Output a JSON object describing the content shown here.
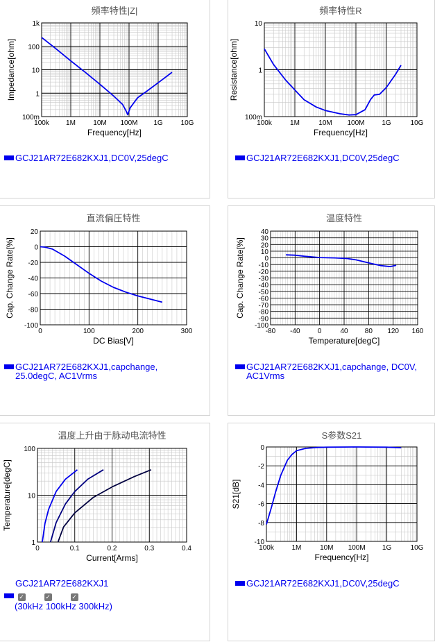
{
  "charts": [
    {
      "id": "impedance",
      "title": "頻率特性|Z|",
      "xlabel": "Frequency[Hz]",
      "ylabel": "Impedance[ohm]",
      "xscale": "log",
      "yscale": "log",
      "xticks": [
        "100k",
        "1M",
        "10M",
        "100M",
        "1G",
        "10G"
      ],
      "yticks": [
        "100m",
        "1",
        "10",
        "100",
        "1k"
      ],
      "legend": [
        "GCJ21AR72E682KXJ1,DC0V,25degC"
      ]
    },
    {
      "id": "resistance",
      "title": "頻率特性R",
      "xlabel": "Frequency[Hz]",
      "ylabel": "Resistance[ohm]",
      "xscale": "log",
      "yscale": "log",
      "xticks": [
        "100k",
        "1M",
        "10M",
        "100M",
        "1G",
        "10G"
      ],
      "yticks": [
        "100m",
        "1",
        "10"
      ],
      "legend": [
        "GCJ21AR72E682KXJ1,DC0V,25degC"
      ]
    },
    {
      "id": "dcbias",
      "title": "直流偏圧特性",
      "xlabel": "DC Bias[V]",
      "ylabel": "Cap. Change Rate[%]",
      "xticks": [
        "0",
        "100",
        "200",
        "300"
      ],
      "yticks": [
        "20",
        "0",
        "-20",
        "-40",
        "-60",
        "-80",
        "-100"
      ],
      "legend": [
        "GCJ21AR72E682KXJ1,capchange,",
        "25.0degC, AC1Vrms"
      ]
    },
    {
      "id": "temperature",
      "title": "温度特性",
      "xlabel": "Temperature[degC]",
      "ylabel": "Cap. Change Rate[%]",
      "xticks": [
        "-80",
        "-40",
        "0",
        "40",
        "80",
        "120",
        "160"
      ],
      "yticks": [
        "40",
        "30",
        "20",
        "10",
        "0",
        "-10",
        "-20",
        "-30",
        "-40",
        "-50",
        "-60",
        "-70",
        "-80",
        "-90",
        "-100"
      ],
      "legend": [
        "GCJ21AR72E682KXJ1,capchange, DC0V,",
        "AC1Vrms"
      ]
    },
    {
      "id": "temprise",
      "title": "温度上升由于脉动电流特性",
      "xlabel": "Current[Arms]",
      "ylabel": "Temperature[degC]",
      "xticks": [
        "0",
        "0.1",
        "0.2",
        "0.3",
        "0.4"
      ],
      "yticks": [
        "1",
        "10",
        "100"
      ],
      "legend": [
        "GCJ21AR72E682KXJ1"
      ],
      "checkboxes": [
        "(30kHz",
        "100kHz",
        "300kHz)"
      ]
    },
    {
      "id": "s21",
      "title": "S参数S21",
      "xlabel": "Frequency[Hz]",
      "ylabel": "S21[dB]",
      "xticks": [
        "100k",
        "1M",
        "10M",
        "100M",
        "1G",
        "10G"
      ],
      "yticks": [
        "0",
        "-2",
        "-4",
        "-6",
        "-8",
        "-10"
      ],
      "legend": [
        "GCJ21AR72E682KXJ1,DC0V,25degC"
      ]
    }
  ],
  "chart_data": [
    {
      "type": "line",
      "title": "頻率特性|Z|",
      "xlabel": "Frequency[Hz]",
      "ylabel": "Impedance[ohm]",
      "xscale": "log",
      "yscale": "log",
      "xlim": [
        100000,
        10000000000
      ],
      "ylim": [
        0.1,
        1000
      ],
      "series": [
        {
          "name": "GCJ21AR72E682KXJ1,DC0V,25degC",
          "x": [
            100000,
            300000,
            1000000,
            3000000,
            10000000,
            30000000,
            60000000,
            80000000,
            90000000,
            110000000,
            200000000,
            400000000,
            1000000000,
            3000000000
          ],
          "y": [
            240,
            82,
            24,
            8.2,
            2.4,
            0.75,
            0.33,
            0.17,
            0.12,
            0.24,
            0.65,
            1.2,
            2.8,
            7.8
          ]
        }
      ]
    },
    {
      "type": "line",
      "title": "頻率特性R",
      "xlabel": "Frequency[Hz]",
      "ylabel": "Resistance[ohm]",
      "xscale": "log",
      "yscale": "log",
      "xlim": [
        100000,
        10000000000
      ],
      "ylim": [
        0.1,
        10
      ],
      "series": [
        {
          "name": "GCJ21AR72E682KXJ1,DC0V,25degC",
          "x": [
            100000,
            200000,
            500000,
            1000000,
            2000000,
            5000000,
            10000000,
            30000000,
            60000000,
            100000000,
            200000000,
            300000000,
            400000000,
            600000000,
            1000000000,
            2000000000,
            3000000000
          ],
          "y": [
            2.8,
            1.3,
            0.6,
            0.37,
            0.23,
            0.16,
            0.135,
            0.115,
            0.108,
            0.11,
            0.14,
            0.23,
            0.29,
            0.3,
            0.42,
            0.8,
            1.25
          ]
        }
      ]
    },
    {
      "type": "line",
      "title": "直流偏圧特性",
      "xlabel": "DC Bias[V]",
      "ylabel": "Cap. Change Rate[%]",
      "xlim": [
        0,
        300
      ],
      "ylim": [
        -100,
        20
      ],
      "series": [
        {
          "name": "GCJ21AR72E682KXJ1,capchange, 25.0degC, AC1Vrms",
          "x": [
            0,
            10,
            25,
            50,
            75,
            100,
            125,
            150,
            175,
            200,
            225,
            250
          ],
          "y": [
            0,
            -0.5,
            -3,
            -12,
            -23,
            -34,
            -44,
            -52,
            -58,
            -63,
            -67,
            -71
          ]
        }
      ]
    },
    {
      "type": "line",
      "title": "温度特性",
      "xlabel": "Temperature[degC]",
      "ylabel": "Cap. Change Rate[%]",
      "xlim": [
        -80,
        160
      ],
      "ylim": [
        -100,
        40
      ],
      "series": [
        {
          "name": "GCJ21AR72E682KXJ1,capchange, DC0V, AC1Vrms",
          "x": [
            -55,
            -40,
            -25,
            0,
            25,
            45,
            60,
            80,
            100,
            115,
            125
          ],
          "y": [
            4.5,
            4,
            2.5,
            0.5,
            0,
            -1,
            -3,
            -7.5,
            -11.5,
            -13,
            -11
          ]
        }
      ]
    },
    {
      "type": "line",
      "title": "温度上升由于脉动电流特性",
      "xlabel": "Current[Arms]",
      "ylabel": "Temperature[degC]",
      "yscale": "log",
      "xlim": [
        0,
        0.4
      ],
      "ylim": [
        1,
        100
      ],
      "series": [
        {
          "name": "30kHz",
          "x": [
            0.013,
            0.02,
            0.03,
            0.05,
            0.075,
            0.107
          ],
          "y": [
            1,
            2.5,
            5,
            12,
            22,
            35
          ]
        },
        {
          "name": "100kHz",
          "x": [
            0.035,
            0.05,
            0.075,
            0.1,
            0.135,
            0.177
          ],
          "y": [
            1,
            2.6,
            6.5,
            12,
            22,
            35
          ]
        },
        {
          "name": "300kHz",
          "x": [
            0.055,
            0.07,
            0.1,
            0.15,
            0.2,
            0.26,
            0.305
          ],
          "y": [
            1,
            2.1,
            4.2,
            9,
            15,
            25,
            35
          ]
        }
      ]
    },
    {
      "type": "line",
      "title": "S参数S21",
      "xlabel": "Frequency[Hz]",
      "ylabel": "S21[dB]",
      "xscale": "log",
      "xlim": [
        100000,
        10000000000
      ],
      "ylim": [
        -10,
        0
      ],
      "series": [
        {
          "name": "GCJ21AR72E682KXJ1,DC0V,25degC",
          "x": [
            100000,
            150000,
            200000,
            300000,
            500000,
            700000,
            1000000,
            2000000,
            5000000,
            10000000,
            100000000,
            1000000000,
            3000000000
          ],
          "y": [
            -8.2,
            -6.3,
            -4.8,
            -3.0,
            -1.4,
            -0.8,
            -0.4,
            -0.15,
            -0.05,
            -0.02,
            0,
            -0.02,
            -0.08
          ]
        }
      ]
    }
  ]
}
